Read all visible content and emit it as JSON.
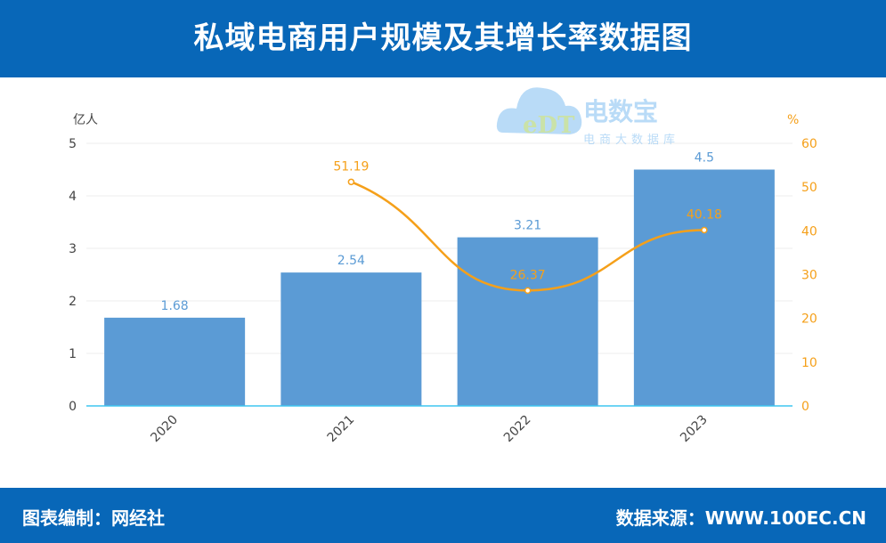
{
  "header": {
    "title": "私域电商用户规模及其增长率数据图"
  },
  "footer": {
    "left": "图表编制：网经社",
    "right": "数据来源：WWW.100EC.CN"
  },
  "logo": {
    "brand": "电数宝",
    "tagline": "电商大数据库",
    "mark": "eDT"
  },
  "chart_data": {
    "type": "bar+line",
    "categories": [
      "2020",
      "2021",
      "2022",
      "2023"
    ],
    "series": [
      {
        "name": "用户规模",
        "type": "bar",
        "axis": "left",
        "values": [
          1.68,
          2.54,
          3.21,
          4.5
        ],
        "labels": [
          "1.68",
          "2.54",
          "3.21",
          "4.5"
        ],
        "color": "#5b9bd5"
      },
      {
        "name": "增长率",
        "type": "line",
        "axis": "right",
        "values": [
          null,
          51.19,
          26.37,
          40.18
        ],
        "labels": [
          "",
          "51.19",
          "26.37",
          "40.18"
        ],
        "color": "#f5a01a"
      }
    ],
    "left_axis": {
      "label": "亿人",
      "ylim": [
        0,
        5
      ],
      "ticks": [
        "0",
        "1",
        "2",
        "3",
        "4",
        "5"
      ]
    },
    "right_axis": {
      "label": "%",
      "ylim": [
        0,
        60
      ],
      "ticks": [
        "0",
        "10",
        "20",
        "30",
        "40",
        "50",
        "60"
      ]
    },
    "grid": true
  }
}
